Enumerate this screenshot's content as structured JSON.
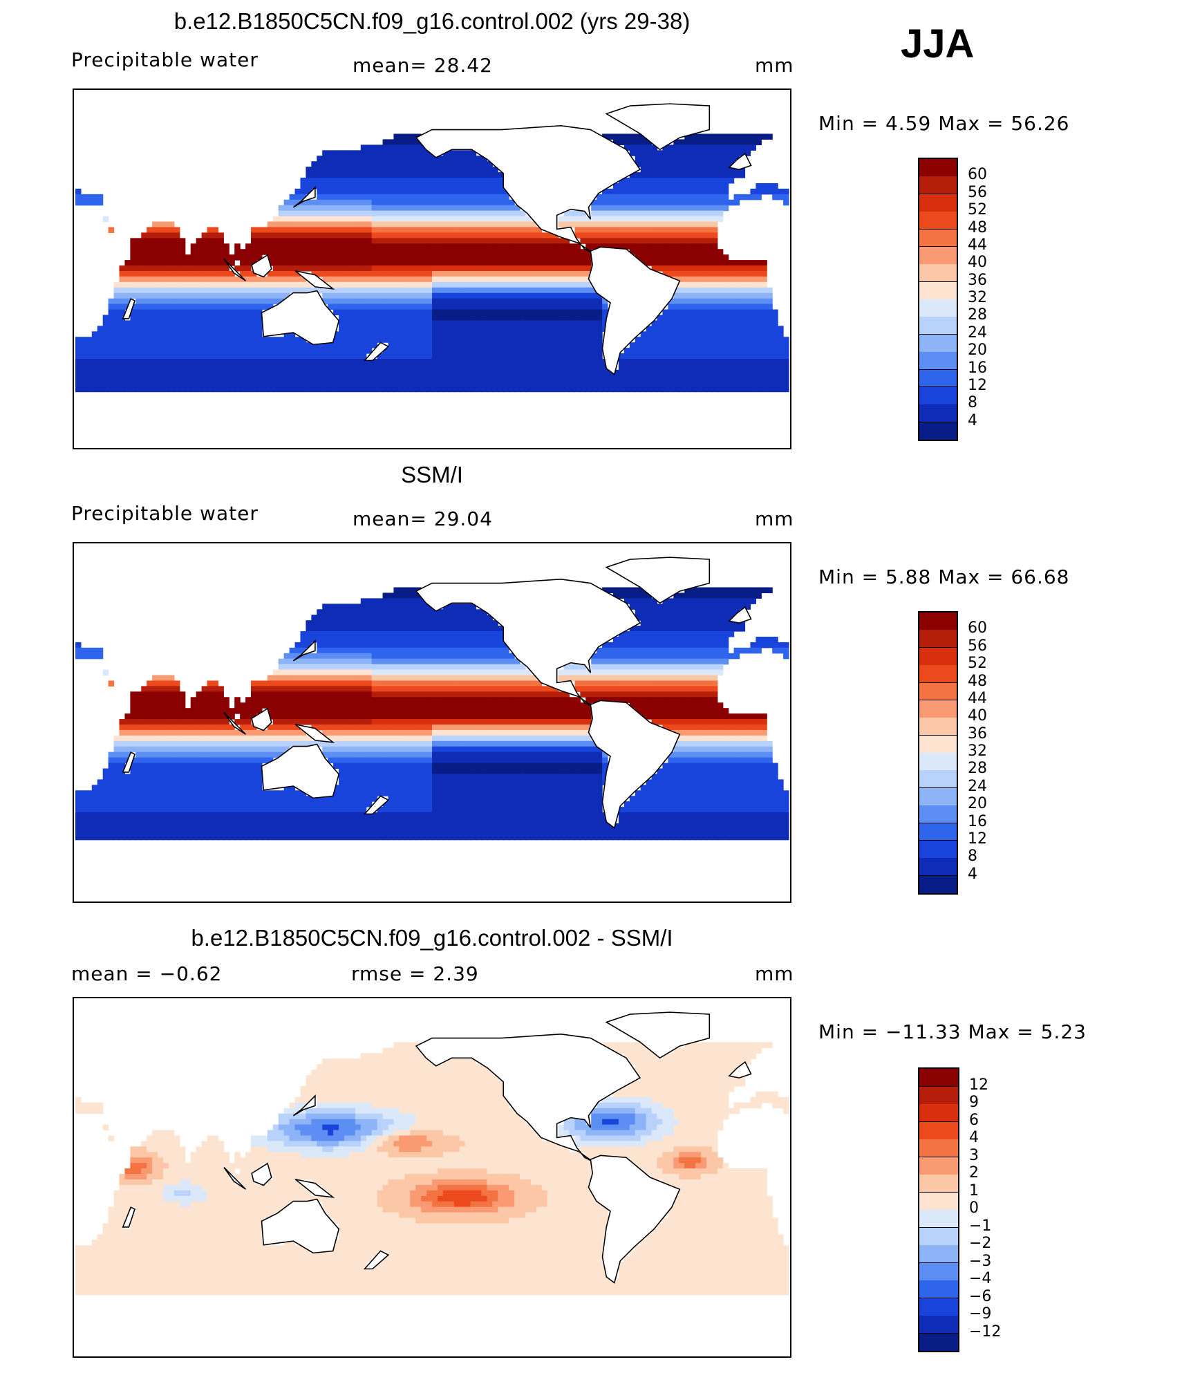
{
  "season": "JJA",
  "panels": [
    {
      "title": "b.e12.B1850C5CN.f09_g16.control.002 (yrs 29-38)",
      "left_label": "Precipitable  water",
      "mid_label": "mean=   28.42",
      "unit": "mm",
      "minmax": "Min  =    4.59  Max  =   56.26",
      "colorbar": {
        "ticks": [
          "60",
          "56",
          "52",
          "48",
          "44",
          "40",
          "36",
          "32",
          "28",
          "24",
          "20",
          "16",
          "12",
          "8",
          "4"
        ],
        "colors": [
          "#8b0000",
          "#b51e0a",
          "#d8300e",
          "#ec4a1d",
          "#f47343",
          "#f99a72",
          "#fcc7a7",
          "#fde4d0",
          "#dbe8f9",
          "#b9d2fb",
          "#8eb4f8",
          "#5d8ef3",
          "#2f64ec",
          "#1844db",
          "#0f2cb6",
          "#081d86"
        ]
      },
      "map_palette": [
        "#081d86",
        "#0f2cb6",
        "#1844db",
        "#2f64ec",
        "#5d8ef3",
        "#8eb4f8",
        "#b9d2fb",
        "#dbe8f9",
        "#fde4d0",
        "#fcc7a7",
        "#f99a72",
        "#f47343",
        "#ec4a1d",
        "#d8300e",
        "#b51e0a",
        "#8b0000"
      ]
    },
    {
      "title": "SSM/I",
      "left_label": "Precipitable  water",
      "mid_label": "mean=   29.04",
      "unit": "mm",
      "minmax": "Min  =    5.88  Max  =   66.68",
      "colorbar": {
        "ticks": [
          "60",
          "56",
          "52",
          "48",
          "44",
          "40",
          "36",
          "32",
          "28",
          "24",
          "20",
          "16",
          "12",
          "8",
          "4"
        ],
        "colors": [
          "#8b0000",
          "#b51e0a",
          "#d8300e",
          "#ec4a1d",
          "#f47343",
          "#f99a72",
          "#fcc7a7",
          "#fde4d0",
          "#dbe8f9",
          "#b9d2fb",
          "#8eb4f8",
          "#5d8ef3",
          "#2f64ec",
          "#1844db",
          "#0f2cb6",
          "#081d86"
        ]
      },
      "map_palette": [
        "#081d86",
        "#0f2cb6",
        "#1844db",
        "#2f64ec",
        "#5d8ef3",
        "#8eb4f8",
        "#b9d2fb",
        "#dbe8f9",
        "#fde4d0",
        "#fcc7a7",
        "#f99a72",
        "#f47343",
        "#ec4a1d",
        "#d8300e",
        "#b51e0a",
        "#8b0000"
      ]
    },
    {
      "title": "b.e12.B1850C5CN.f09_g16.control.002 - SSM/I",
      "left_label": "mean  =     −0.62",
      "mid_label": "rmse  =     2.39",
      "unit": "mm",
      "minmax": "Min  =  −11.33  Max  =     5.23",
      "colorbar": {
        "ticks": [
          "12",
          "9",
          "6",
          "4",
          "3",
          "2",
          "1",
          "0",
          "−1",
          "−2",
          "−3",
          "−4",
          "−6",
          "−9",
          "−12"
        ],
        "colors": [
          "#8b0000",
          "#b51e0a",
          "#d8300e",
          "#ec4a1d",
          "#f47343",
          "#f99a72",
          "#fcc7a7",
          "#fde4d0",
          "#dbe8f9",
          "#b9d2fb",
          "#8eb4f8",
          "#5d8ef3",
          "#2f64ec",
          "#1844db",
          "#0f2cb6",
          "#081d86"
        ]
      },
      "map_palette": [
        "#0f2cb6",
        "#1844db",
        "#5d8ef3",
        "#8eb4f8",
        "#b9d2fb",
        "#dbe8f9",
        "#fde4d0",
        "#fcc7a7",
        "#f99a72",
        "#f47343",
        "#ec4a1d",
        "#d8300e"
      ]
    }
  ]
}
